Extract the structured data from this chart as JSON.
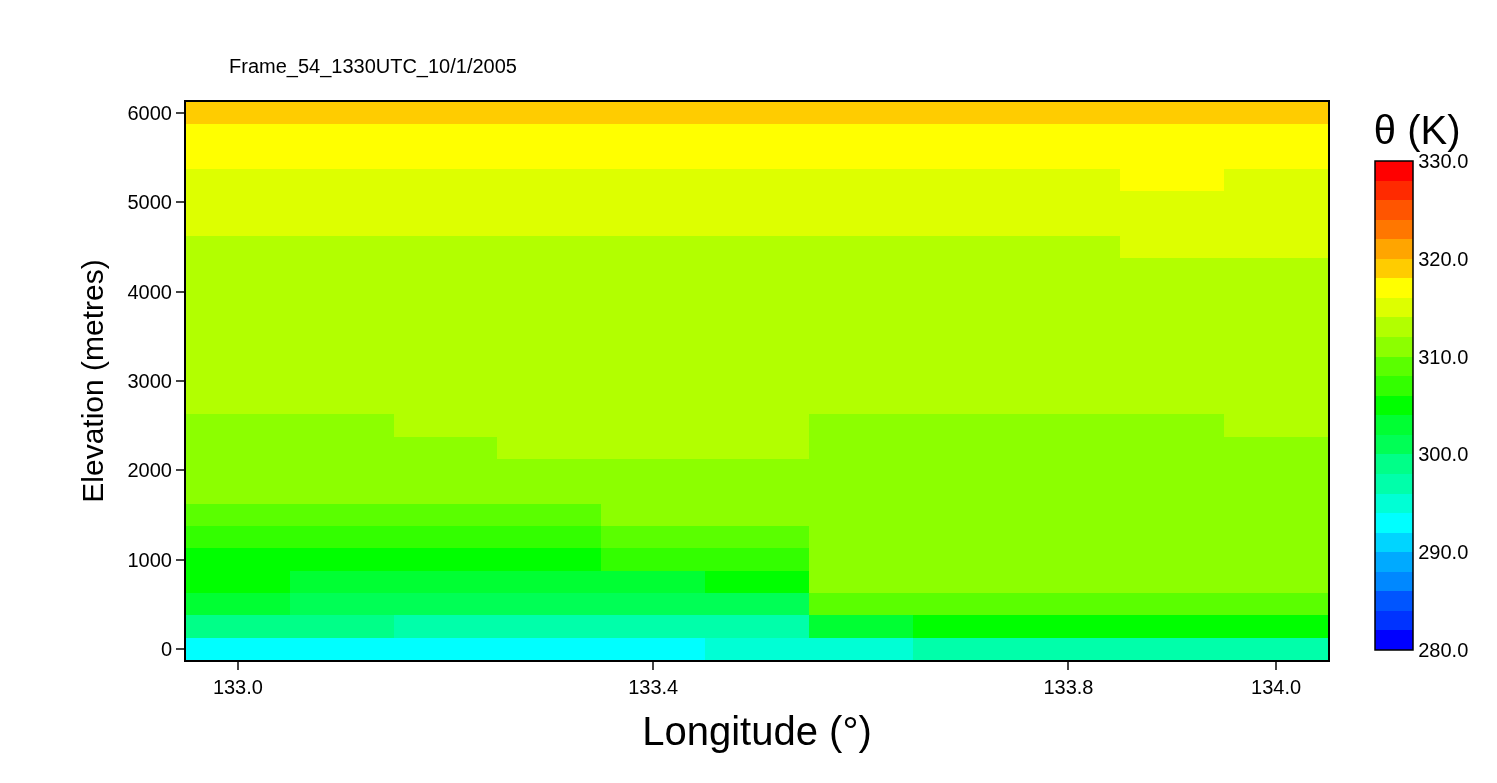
{
  "chart_data": {
    "type": "heatmap",
    "title": "Frame_54_1330UTC_10/1/2005",
    "xlabel": "Longitude (°)",
    "ylabel": "Elevation (metres)",
    "clabel": "θ (K)",
    "categories": [
      "133.0",
      null,
      null,
      null,
      "133.4",
      null,
      null,
      null,
      "133.8",
      null,
      "134.0"
    ],
    "y_categories": [
      "6000",
      null,
      null,
      null,
      "5000",
      null,
      null,
      null,
      "4000",
      null,
      null,
      null,
      "3000",
      null,
      null,
      null,
      "2000",
      null,
      null,
      null,
      "1000",
      null,
      null,
      null,
      "0"
    ],
    "cells": [
      [
        319,
        319,
        319,
        319,
        319,
        319,
        319,
        319,
        319,
        319,
        319
      ],
      [
        317,
        317,
        317,
        317,
        317,
        317,
        317,
        317,
        317,
        317,
        317
      ],
      [
        317,
        317,
        317,
        317,
        317,
        317,
        317,
        317,
        317,
        317,
        317
      ],
      [
        315,
        315,
        315,
        315,
        315,
        315,
        315,
        315,
        315,
        317,
        315
      ],
      [
        315,
        315,
        315,
        315,
        315,
        315,
        315,
        315,
        315,
        315,
        315
      ],
      [
        315,
        315,
        315,
        315,
        315,
        315,
        315,
        315,
        315,
        315,
        315
      ],
      [
        313,
        313,
        313,
        313,
        313,
        313,
        313,
        313,
        313,
        315,
        315
      ],
      [
        313,
        313,
        313,
        313,
        313,
        313,
        313,
        313,
        313,
        313,
        313
      ],
      [
        313,
        313,
        313,
        313,
        313,
        313,
        313,
        313,
        313,
        313,
        313
      ],
      [
        313,
        313,
        313,
        313,
        313,
        313,
        313,
        313,
        313,
        313,
        313
      ],
      [
        313,
        313,
        313,
        313,
        313,
        313,
        313,
        313,
        313,
        313,
        313
      ],
      [
        313,
        313,
        313,
        313,
        313,
        313,
        313,
        313,
        313,
        313,
        313
      ],
      [
        313,
        313,
        313,
        313,
        313,
        313,
        313,
        313,
        313,
        313,
        313
      ],
      [
        313,
        313,
        313,
        313,
        313,
        313,
        313,
        313,
        313,
        313,
        313
      ],
      [
        311,
        311,
        313,
        313,
        313,
        313,
        311,
        311,
        311,
        311,
        313
      ],
      [
        311,
        311,
        311,
        313,
        313,
        313,
        311,
        311,
        311,
        311,
        311
      ],
      [
        311,
        311,
        311,
        311,
        311,
        311,
        311,
        311,
        311,
        311,
        311
      ],
      [
        311,
        311,
        311,
        311,
        311,
        311,
        311,
        311,
        311,
        311,
        311
      ],
      [
        309,
        309,
        309,
        309,
        311,
        311,
        311,
        311,
        311,
        311,
        311
      ],
      [
        307,
        307,
        307,
        307,
        309,
        309,
        311,
        311,
        311,
        311,
        311
      ],
      [
        305,
        305,
        305,
        305,
        307,
        307,
        311,
        311,
        311,
        311,
        311
      ],
      [
        305,
        303,
        303,
        303,
        303,
        305,
        311,
        311,
        311,
        311,
        311
      ],
      [
        303,
        301,
        301,
        301,
        301,
        301,
        309,
        309,
        309,
        309,
        309
      ],
      [
        299,
        299,
        297,
        297,
        297,
        297,
        303,
        305,
        305,
        305,
        305
      ],
      [
        293,
        293,
        293,
        293,
        293,
        295,
        295,
        297,
        297,
        297,
        297
      ]
    ],
    "colors": [
      "#0000ff",
      "#0033ff",
      "#0055ff",
      "#0088ff",
      "#00aaff",
      "#00d5ff",
      "#00ffff",
      "#00ffd5",
      "#00ffaa",
      "#00ff88",
      "#00ff55",
      "#00ff33",
      "#00ff00",
      "#33ff00",
      "#5aff00",
      "#8cff00",
      "#b2ff00",
      "#ddff00",
      "#ffff00",
      "#ffcc00",
      "#ffa500",
      "#ff7700",
      "#ff5500",
      "#ff2a00",
      "#ff0000"
    ],
    "clim": [
      280,
      330
    ],
    "cticks": [
      {
        "value": 280,
        "label": "280.0"
      },
      {
        "value": 290,
        "label": "290.0"
      },
      {
        "value": 300,
        "label": "300.0"
      },
      {
        "value": 310,
        "label": "310.0"
      },
      {
        "value": 320,
        "label": "320.0"
      },
      {
        "value": 330,
        "label": "330.0"
      }
    ]
  }
}
